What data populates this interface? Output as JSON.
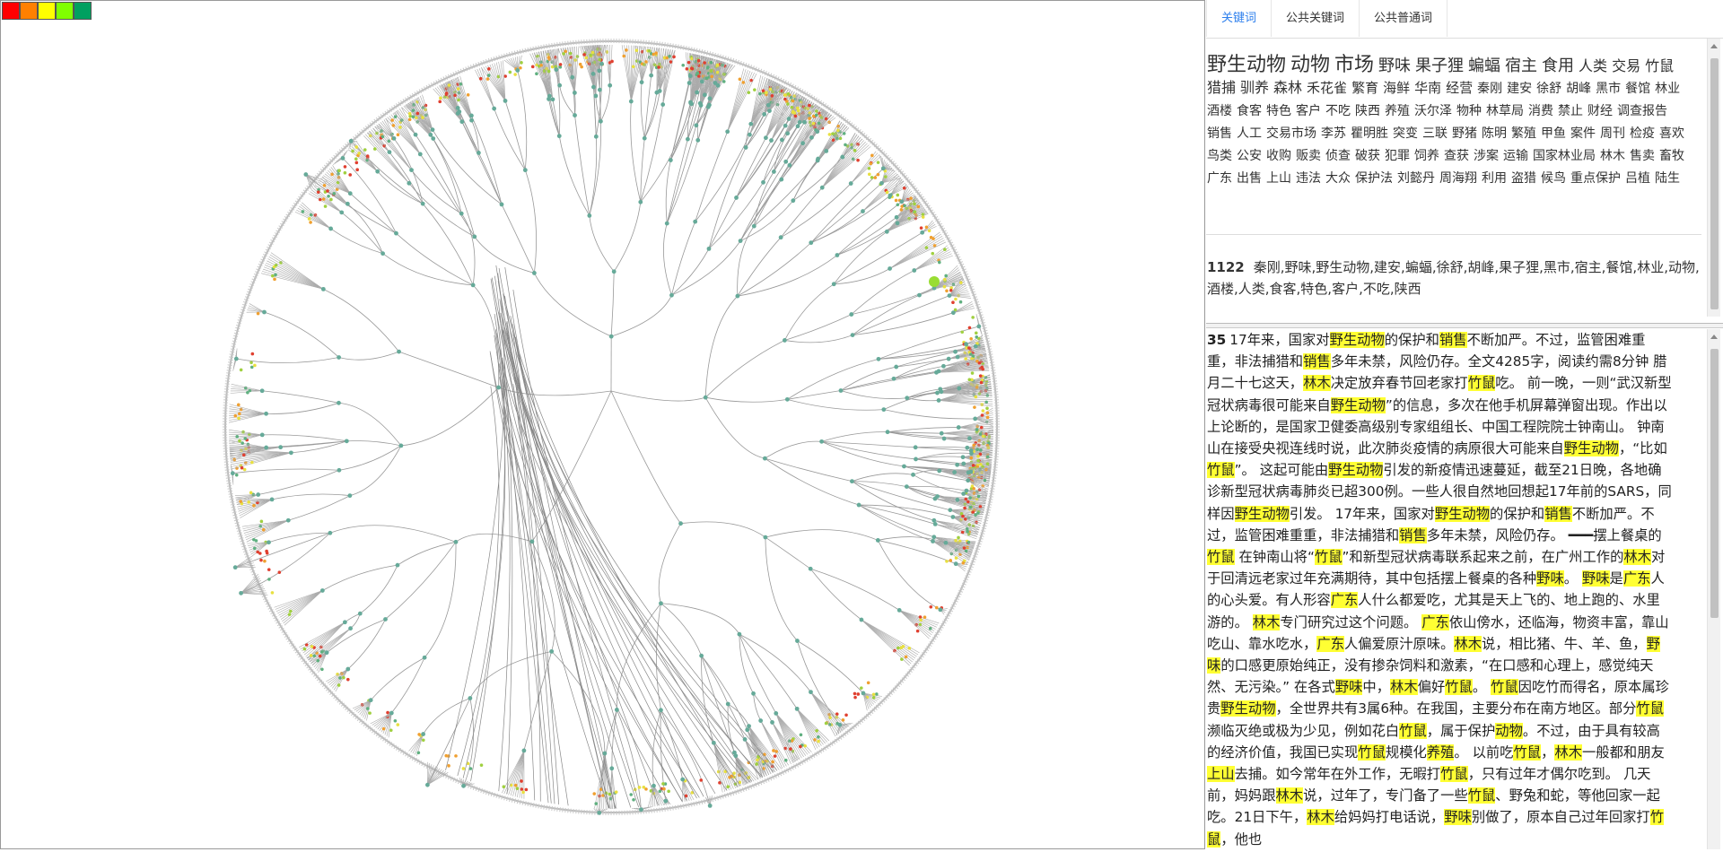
{
  "legend": {
    "colors": [
      "#ff0000",
      "#ff8000",
      "#ffff00",
      "#80ff00",
      "#00a060"
    ]
  },
  "tabs": [
    {
      "label": "关键词",
      "active": true
    },
    {
      "label": "公共关键词",
      "active": false
    },
    {
      "label": "公共普通词",
      "active": false
    }
  ],
  "keywords": [
    {
      "text": "野生动物",
      "size": 22
    },
    {
      "text": "动物",
      "size": 22
    },
    {
      "text": "市场",
      "size": 22
    },
    {
      "text": "野味",
      "size": 18
    },
    {
      "text": "果子狸",
      "size": 18
    },
    {
      "text": "蝙蝠",
      "size": 18
    },
    {
      "text": "宿主",
      "size": 18
    },
    {
      "text": "食用",
      "size": 18
    },
    {
      "text": "人类",
      "size": 16
    },
    {
      "text": "交易",
      "size": 16
    },
    {
      "text": "竹鼠",
      "size": 16
    },
    {
      "text": "猎捕",
      "size": 16
    },
    {
      "text": "驯养",
      "size": 16
    },
    {
      "text": "森林",
      "size": 16
    },
    {
      "text": "禾花雀",
      "size": 15
    },
    {
      "text": "繁育",
      "size": 15
    },
    {
      "text": "海鲜",
      "size": 15
    },
    {
      "text": "华南",
      "size": 15
    },
    {
      "text": "经营",
      "size": 15
    },
    {
      "text": "秦刚",
      "size": 14
    },
    {
      "text": "建安",
      "size": 14
    },
    {
      "text": "徐舒",
      "size": 14
    },
    {
      "text": "胡峰",
      "size": 14
    },
    {
      "text": "黑市",
      "size": 14
    },
    {
      "text": "餐馆",
      "size": 14
    },
    {
      "text": "林业",
      "size": 14
    },
    {
      "text": "酒楼",
      "size": 14
    },
    {
      "text": "食客",
      "size": 14
    },
    {
      "text": "特色",
      "size": 14
    },
    {
      "text": "客户",
      "size": 14
    },
    {
      "text": "不吃",
      "size": 14
    },
    {
      "text": "陕西",
      "size": 14
    },
    {
      "text": "养殖",
      "size": 14
    },
    {
      "text": "沃尔泽",
      "size": 14
    },
    {
      "text": "物种",
      "size": 14
    },
    {
      "text": "林草局",
      "size": 14
    },
    {
      "text": "消费",
      "size": 14
    },
    {
      "text": "禁止",
      "size": 14
    },
    {
      "text": "财经",
      "size": 14
    },
    {
      "text": "调查报告",
      "size": 14
    },
    {
      "text": "销售",
      "size": 14
    },
    {
      "text": "人工",
      "size": 14
    },
    {
      "text": "交易市场",
      "size": 14
    },
    {
      "text": "李苏",
      "size": 14
    },
    {
      "text": "瞿明胜",
      "size": 14
    },
    {
      "text": "突变",
      "size": 14
    },
    {
      "text": "三联",
      "size": 14
    },
    {
      "text": "野猪",
      "size": 14
    },
    {
      "text": "陈明",
      "size": 14
    },
    {
      "text": "繁殖",
      "size": 14
    },
    {
      "text": "甲鱼",
      "size": 14
    },
    {
      "text": "案件",
      "size": 14
    },
    {
      "text": "周刊",
      "size": 14
    },
    {
      "text": "检疫",
      "size": 14
    },
    {
      "text": "喜欢",
      "size": 14
    },
    {
      "text": "鸟类",
      "size": 14
    },
    {
      "text": "公安",
      "size": 14
    },
    {
      "text": "收购",
      "size": 14
    },
    {
      "text": "贩卖",
      "size": 14
    },
    {
      "text": "侦查",
      "size": 14
    },
    {
      "text": "破获",
      "size": 14
    },
    {
      "text": "犯罪",
      "size": 14
    },
    {
      "text": "饲养",
      "size": 14
    },
    {
      "text": "查获",
      "size": 14
    },
    {
      "text": "涉案",
      "size": 14
    },
    {
      "text": "运输",
      "size": 14
    },
    {
      "text": "国家林业局",
      "size": 14
    },
    {
      "text": "林木",
      "size": 14
    },
    {
      "text": "售卖",
      "size": 14
    },
    {
      "text": "畜牧",
      "size": 14
    },
    {
      "text": "广东",
      "size": 14
    },
    {
      "text": "出售",
      "size": 14
    },
    {
      "text": "上山",
      "size": 14
    },
    {
      "text": "违法",
      "size": 14
    },
    {
      "text": "大众",
      "size": 14
    },
    {
      "text": "保护法",
      "size": 14
    },
    {
      "text": "刘懿丹",
      "size": 14
    },
    {
      "text": "周海翔",
      "size": 14
    },
    {
      "text": "利用",
      "size": 14
    },
    {
      "text": "盗猎",
      "size": 14
    },
    {
      "text": "候鸟",
      "size": 14
    },
    {
      "text": "重点保护",
      "size": 14
    },
    {
      "text": "吕植",
      "size": 14
    },
    {
      "text": "陆生",
      "size": 14
    }
  ],
  "group": {
    "id": "1122",
    "words": "秦刚,野味,野生动物,建安,蝙蝠,徐舒,胡峰,果子狸,黑市,宿主,餐馆,林业,动物,酒楼,人类,食客,特色,客户,不吃,陕西"
  },
  "document": {
    "id": "35",
    "highlights": [
      "野生动物",
      "销售",
      "林木",
      "竹鼠",
      "野味",
      "广东",
      "动物",
      "养殖",
      "上山"
    ],
    "text": "17年来，国家对野生动物的保护和销售不断加严。不过，监管困难重重，非法捕猎和销售多年未禁，风险仍存。全文4285字，阅读约需8分钟 腊月二十七这天，林木决定放弃春节回老家打竹鼠吃。 前一晚，一则“武汉新型冠状病毒很可能来自野生动物”的信息，多次在他手机屏幕弹窗出现。作出以上论断的，是国家卫健委高级别专家组组长、中国工程院院士钟南山。 钟南山在接受央视连线时说，此次肺炎疫情的病原很大可能来自野生动物，“比如竹鼠”。 这起可能由野生动物引发的新疫情迅速蔓延，截至21日晚，各地确诊新型冠状病毒肺炎已超300例。一些人很自然地回想起17年前的SARS，同样因野生动物引发。 17年来，国家对野生动物的保护和销售不断加严。不过，监管困难重重，非法捕猎和销售多年未禁，风险仍存。 ━━━摆上餐桌的竹鼠 在钟南山将“竹鼠”和新型冠状病毒联系起来之前，在广州工作的林木对于回清远老家过年充满期待，其中包括摆上餐桌的各种野味。 野味是广东人的心头爱。有人形容广东人什么都爱吃，尤其是天上飞的、地上跑的、水里游的。 林木专门研究过这个问题。 广东依山傍水，还临海，物资丰富，靠山吃山、靠水吃水，广东人偏爱原汁原味。林木说，相比猪、牛、羊、鱼，野味的口感更原始纯正，没有掺杂饲料和激素，“在口感和心理上，感觉纯天然、无污染。” 在各式野味中，林木偏好竹鼠。 竹鼠因吃竹而得名，原本属珍贵野生动物，全世界共有3属6种。在我国，主要分布在南方地区。部分竹鼠濒临灭绝或极为少见，例如花白竹鼠，属于保护动物。不过，由于具有较高的经济价值，我国已实现竹鼠规模化养殖。 以前吃竹鼠，林木一般都和朋友上山去捕。如今常年在外工作，无暇打竹鼠，只有过年才偶尔吃到。 几天前，妈妈跟林木说，过年了，专门备了一些竹鼠、野兔和蛇，等他回家一起吃。21日下午，林木给妈妈打电话说，野味别做了，原本自己过年回家打竹鼠，他也"
  }
}
